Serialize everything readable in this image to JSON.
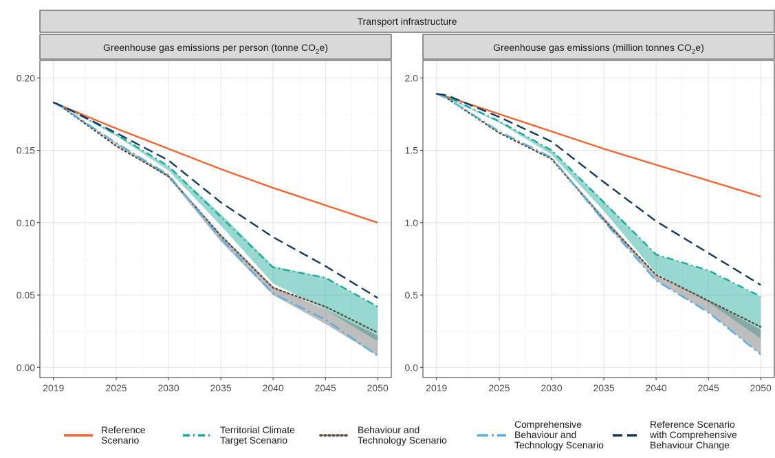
{
  "chart_data": {
    "type": "line",
    "strip_title": "Transport infrastructure",
    "x_ticks": [
      2019,
      2025,
      2030,
      2035,
      2040,
      2045,
      2050
    ],
    "legend_placement": "bottom",
    "grid": true,
    "series_styles": [
      {
        "name": "Reference Scenario",
        "label_lines": [
          "Reference",
          "Scenario"
        ],
        "color": "#F26430",
        "dash": "solid"
      },
      {
        "name": "Territorial Climate Target Scenario",
        "label_lines": [
          "Territorial Climate",
          "Target Scenario"
        ],
        "color": "#1AA99A",
        "dash": "dashdot"
      },
      {
        "name": "Behaviour and Technology Scenario",
        "label_lines": [
          "Behaviour and",
          "Technology Scenario"
        ],
        "color": "#5C4A3A",
        "dash": "dotted"
      },
      {
        "name": "Comprehensive Behaviour and Technology Scenario",
        "label_lines": [
          "Comprehensive",
          "Behaviour and",
          "Technology Scenario"
        ],
        "color": "#5AAEE0",
        "dash": "longdashdot"
      },
      {
        "name": "Reference Scenario with Comprehensive Behaviour Change",
        "label_lines": [
          "Reference Scenario",
          "with Comprehensive",
          "Behaviour Change"
        ],
        "color": "#15385C",
        "dash": "longdash"
      }
    ],
    "panels": [
      {
        "title": "Greenhouse gas emissions per person (tonne CO₂e)",
        "title_main": "Greenhouse gas emissions per person (tonne CO",
        "title_sub": "2",
        "title_end": "e)",
        "ylim": [
          -0.007,
          0.212
        ],
        "y_ticks": [
          0.0,
          0.05,
          0.1,
          0.15,
          0.2
        ],
        "y_tick_labels": [
          "0.00",
          "0.05",
          "0.10",
          "0.15",
          "0.20"
        ],
        "x": [
          2019,
          2020,
          2025,
          2030,
          2035,
          2040,
          2045,
          2050
        ],
        "series": [
          {
            "name": "Reference Scenario",
            "values": [
              0.183,
              0.18,
              0.165,
              0.151,
              0.137,
              0.124,
              0.112,
              0.1
            ]
          },
          {
            "name": "Territorial Climate Target Scenario",
            "values": [
              0.183,
              0.18,
              0.161,
              0.139,
              0.104,
              0.069,
              0.062,
              0.042
            ]
          },
          {
            "name": "Behaviour and Technology Scenario",
            "values": [
              0.183,
              0.179,
              0.153,
              0.132,
              0.091,
              0.055,
              0.042,
              0.024
            ]
          },
          {
            "name": "Comprehensive Behaviour and Technology Scenario",
            "values": [
              0.183,
              0.179,
              0.155,
              0.133,
              0.089,
              0.051,
              0.033,
              0.008
            ]
          },
          {
            "name": "Reference Scenario with Comprehensive Behaviour Change",
            "values": [
              0.183,
              0.18,
              0.162,
              0.143,
              0.114,
              0.09,
              0.07,
              0.048
            ]
          }
        ],
        "ribbons": [
          {
            "name": "Territorial Climate Target Scenario",
            "upper": [
              0.183,
              0.18,
              0.161,
              0.139,
              0.106,
              0.07,
              0.062,
              0.042
            ],
            "lower": [
              0.183,
              0.18,
              0.16,
              0.136,
              0.098,
              0.058,
              0.04,
              0.018
            ]
          },
          {
            "name": "Comprehensive Behaviour and Technology Scenario",
            "upper": [
              0.183,
              0.179,
              0.155,
              0.133,
              0.092,
              0.056,
              0.04,
              0.022
            ],
            "lower": [
              0.183,
              0.179,
              0.154,
              0.131,
              0.087,
              0.05,
              0.03,
              0.008
            ]
          }
        ]
      },
      {
        "title": "Greenhouse gas emissions (million tonnes CO₂e)",
        "title_main": "Greenhouse gas emissions (million tonnes CO",
        "title_sub": "2",
        "title_end": "e)",
        "ylim": [
          -0.07,
          2.12
        ],
        "y_ticks": [
          0.0,
          0.5,
          1.0,
          1.5,
          2.0
        ],
        "y_tick_labels": [
          "0.0",
          "0.5",
          "1.0",
          "1.5",
          "2.0"
        ],
        "x": [
          2019,
          2020,
          2025,
          2030,
          2035,
          2040,
          2045,
          2050
        ],
        "series": [
          {
            "name": "Reference Scenario",
            "values": [
              1.89,
              1.87,
              1.75,
              1.63,
              1.51,
              1.4,
              1.29,
              1.18
            ]
          },
          {
            "name": "Territorial Climate Target Scenario",
            "values": [
              1.89,
              1.87,
              1.7,
              1.5,
              1.14,
              0.78,
              0.67,
              0.49
            ]
          },
          {
            "name": "Behaviour and Technology Scenario",
            "values": [
              1.89,
              1.86,
              1.62,
              1.44,
              1.02,
              0.64,
              0.46,
              0.28
            ]
          },
          {
            "name": "Comprehensive Behaviour and Technology Scenario",
            "values": [
              1.89,
              1.86,
              1.63,
              1.45,
              1.01,
              0.6,
              0.38,
              0.09
            ]
          },
          {
            "name": "Reference Scenario with Comprehensive Behaviour Change",
            "values": [
              1.89,
              1.88,
              1.73,
              1.56,
              1.28,
              1.01,
              0.79,
              0.57
            ]
          }
        ],
        "ribbons": [
          {
            "name": "Territorial Climate Target Scenario",
            "upper": [
              1.89,
              1.87,
              1.7,
              1.5,
              1.15,
              0.78,
              0.67,
              0.49
            ],
            "lower": [
              1.89,
              1.86,
              1.69,
              1.47,
              1.08,
              0.65,
              0.45,
              0.2
            ]
          },
          {
            "name": "Comprehensive Behaviour and Technology Scenario",
            "upper": [
              1.89,
              1.86,
              1.63,
              1.45,
              1.04,
              0.64,
              0.46,
              0.26
            ]
          }
        ]
      }
    ]
  }
}
